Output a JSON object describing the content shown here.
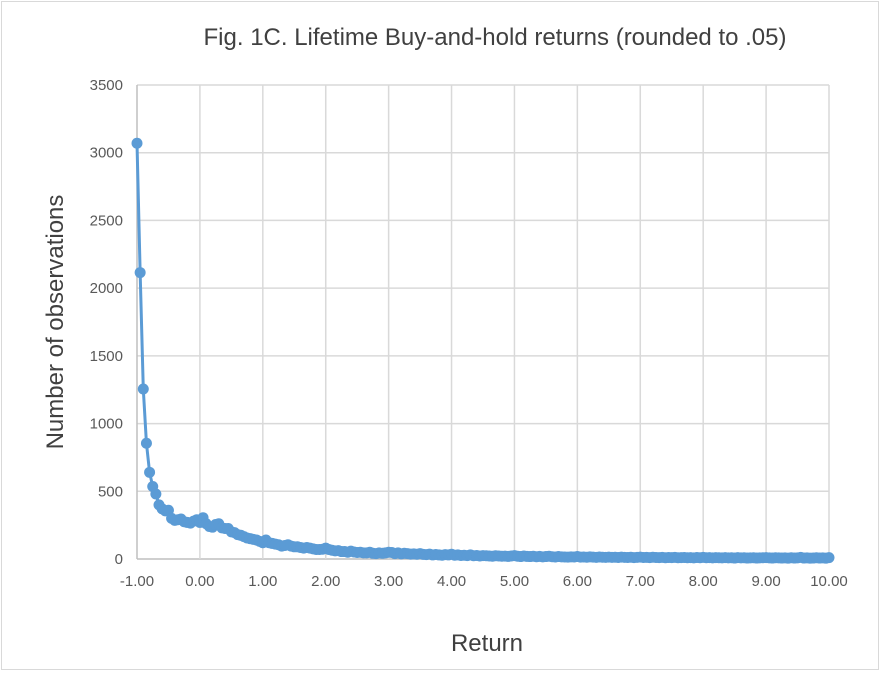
{
  "chart_data": {
    "type": "line",
    "title": "Fig. 1C. Lifetime Buy-and-hold returns (rounded to .05)",
    "xlabel": "Return",
    "ylabel": "Number of observations",
    "xlim": [
      -1,
      10
    ],
    "ylim": [
      0,
      3500
    ],
    "x_ticks": [
      "-1.00",
      "0.00",
      "1.00",
      "2.00",
      "3.00",
      "4.00",
      "5.00",
      "6.00",
      "7.00",
      "8.00",
      "9.00",
      "10.00"
    ],
    "y_ticks": [
      "0",
      "500",
      "1000",
      "1500",
      "2000",
      "2500",
      "3000",
      "3500"
    ],
    "grid": true,
    "color": "#5b9bd5",
    "x_start": -1.0,
    "x_step": 0.05,
    "values": [
      3070,
      2115,
      1255,
      855,
      640,
      535,
      480,
      400,
      370,
      355,
      360,
      300,
      285,
      290,
      295,
      275,
      270,
      265,
      280,
      290,
      270,
      305,
      260,
      240,
      235,
      255,
      260,
      230,
      225,
      225,
      200,
      195,
      180,
      175,
      165,
      155,
      150,
      145,
      140,
      130,
      120,
      140,
      120,
      115,
      110,
      105,
      95,
      100,
      105,
      95,
      90,
      90,
      85,
      80,
      85,
      80,
      75,
      70,
      70,
      72,
      80,
      70,
      65,
      60,
      62,
      55,
      55,
      50,
      58,
      52,
      48,
      50,
      45,
      45,
      50,
      42,
      40,
      45,
      42,
      45,
      50,
      48,
      40,
      45,
      38,
      42,
      40,
      36,
      38,
      35,
      40,
      34,
      32,
      36,
      30,
      33,
      30,
      28,
      32,
      30,
      35,
      28,
      30,
      26,
      28,
      25,
      30,
      24,
      26,
      22,
      25,
      24,
      22,
      20,
      24,
      22,
      20,
      21,
      19,
      22,
      25,
      20,
      18,
      22,
      19,
      18,
      20,
      17,
      19,
      16,
      18,
      20,
      17,
      15,
      18,
      16,
      15,
      14,
      16,
      15,
      18,
      14,
      15,
      13,
      16,
      14,
      12,
      15,
      13,
      12,
      14,
      12,
      13,
      11,
      14,
      12,
      11,
      13,
      10,
      12,
      14,
      11,
      12,
      10,
      13,
      11,
      10,
      12,
      9,
      11,
      10,
      12,
      9,
      10,
      11,
      9,
      10,
      8,
      11,
      9,
      12,
      9,
      10,
      8,
      10,
      9,
      8,
      10,
      8,
      9,
      7,
      10,
      8,
      9,
      7,
      8,
      9,
      7,
      8,
      9,
      10,
      8,
      7,
      9,
      8,
      7,
      8,
      6,
      9,
      7,
      8,
      12,
      7,
      8,
      6,
      7,
      9,
      7,
      8,
      6,
      10
    ]
  }
}
